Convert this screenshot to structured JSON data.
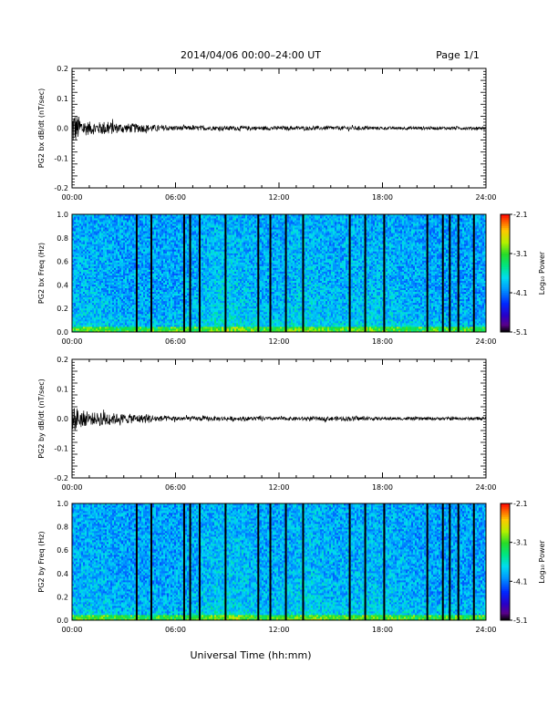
{
  "header": {
    "title": "2014/04/06  00:00–24:00 UT",
    "page": "Page 1/1"
  },
  "footer": {
    "xlabel": "Universal Time (hh:mm)"
  },
  "colors": {
    "trace": "#000000",
    "axis": "#000000",
    "background": "#ffffff"
  },
  "chart_data": [
    {
      "type": "line",
      "id": "bx-dbdt",
      "title": "",
      "ylabel": "PG2 bx dB/dt (nT/sec)",
      "xlabel": "",
      "xlim": [
        0,
        24
      ],
      "ylim": [
        -0.2,
        0.2
      ],
      "x_tick_labels": [
        "00:00",
        "06:00",
        "12:00",
        "18:00",
        "24:00"
      ],
      "y_tick_labels": [
        "0.2",
        "0.1",
        "0.0",
        "-0.1",
        "-0.2"
      ],
      "y_tick_values": [
        0.2,
        0.1,
        0.0,
        -0.1,
        -0.2
      ],
      "series": [
        {
          "x": [
            0,
            0.2,
            0.4,
            0.6,
            0.8,
            1.0,
            1.5,
            2.0,
            2.5,
            3.0,
            3.5,
            4.0,
            5.0,
            6.0,
            8.0,
            10.0,
            12.0,
            14.0,
            16.0,
            18.0,
            20.0,
            22.0,
            24.0
          ],
          "envelope": [
            0.07,
            0.05,
            0.04,
            0.03,
            0.025,
            0.022,
            0.02,
            0.025,
            0.018,
            0.015,
            0.016,
            0.014,
            0.01,
            0.008,
            0.007,
            0.007,
            0.006,
            0.006,
            0.007,
            0.005,
            0.005,
            0.005,
            0.005
          ]
        }
      ],
      "grid": false
    },
    {
      "type": "heatmap",
      "id": "bx-spec",
      "title": "",
      "ylabel": "PG2 bx Freq (Hz)",
      "xlabel": "",
      "xlim": [
        0,
        24
      ],
      "ylim": [
        0.0,
        1.0
      ],
      "x_tick_labels": [
        "00:00",
        "06:00",
        "12:00",
        "18:00",
        "24:00"
      ],
      "y_tick_labels": [
        "1.0",
        "0.8",
        "0.6",
        "0.4",
        "0.2",
        "0.0"
      ],
      "y_tick_values": [
        1.0,
        0.8,
        0.6,
        0.4,
        0.2,
        0.0
      ],
      "colorbar": {
        "label": "Log₁₀ Power",
        "range": [
          -5.1,
          -2.1
        ],
        "tick_labels": [
          "-2.1",
          "-3.1",
          "-4.1",
          "-5.1"
        ],
        "tick_values": [
          -2.1,
          -3.1,
          -4.1,
          -5.1
        ]
      },
      "data_gaps_hours": [
        3.75,
        4.6,
        6.5,
        6.85,
        7.4,
        8.9,
        10.8,
        11.5,
        12.4,
        13.4,
        16.1,
        17.0,
        18.1,
        20.6,
        21.5,
        21.9,
        22.4,
        23.3
      ],
      "grid": false
    },
    {
      "type": "line",
      "id": "by-dbdt",
      "title": "",
      "ylabel": "PG2 by dB/dt (nT/sec)",
      "xlabel": "",
      "xlim": [
        0,
        24
      ],
      "ylim": [
        -0.2,
        0.2
      ],
      "x_tick_labels": [
        "00:00",
        "06:00",
        "12:00",
        "18:00",
        "24:00"
      ],
      "y_tick_labels": [
        "0.2",
        "0.1",
        "0.0",
        "-0.1",
        "-0.2"
      ],
      "y_tick_values": [
        0.2,
        0.1,
        0.0,
        -0.1,
        -0.2
      ],
      "series": [
        {
          "x": [
            0,
            0.2,
            0.4,
            0.6,
            0.8,
            1.0,
            1.5,
            1.8,
            2.0,
            2.5,
            3.0,
            3.5,
            4.0,
            4.5,
            5.0,
            6.0,
            8.0,
            10.0,
            12.0,
            14.0,
            16.0,
            18.0,
            20.0,
            22.0,
            24.0
          ],
          "envelope": [
            0.05,
            0.04,
            0.035,
            0.03,
            0.025,
            0.022,
            0.02,
            0.035,
            0.025,
            0.018,
            0.016,
            0.016,
            0.014,
            0.015,
            0.01,
            0.008,
            0.007,
            0.007,
            0.006,
            0.006,
            0.008,
            0.005,
            0.005,
            0.005,
            0.005
          ]
        }
      ],
      "grid": false
    },
    {
      "type": "heatmap",
      "id": "by-spec",
      "title": "",
      "ylabel": "PG2 by Freq (Hz)",
      "xlabel": "Universal Time (hh:mm)",
      "xlim": [
        0,
        24
      ],
      "ylim": [
        0.0,
        1.0
      ],
      "x_tick_labels": [
        "00:00",
        "06:00",
        "12:00",
        "18:00",
        "24:00"
      ],
      "y_tick_labels": [
        "1.0",
        "0.8",
        "0.6",
        "0.4",
        "0.2",
        "0.0"
      ],
      "y_tick_values": [
        1.0,
        0.8,
        0.6,
        0.4,
        0.2,
        0.0
      ],
      "colorbar": {
        "label": "Log₁₀ Power",
        "range": [
          -5.1,
          -2.1
        ],
        "tick_labels": [
          "-2.1",
          "-3.1",
          "-4.1",
          "-5.1"
        ],
        "tick_values": [
          -2.1,
          -3.1,
          -4.1,
          -5.1
        ]
      },
      "data_gaps_hours": [
        3.75,
        4.6,
        6.5,
        6.85,
        7.4,
        8.9,
        10.8,
        11.5,
        12.4,
        13.4,
        16.1,
        17.0,
        18.1,
        20.6,
        21.5,
        21.9,
        22.4,
        23.3
      ],
      "grid": false
    }
  ]
}
